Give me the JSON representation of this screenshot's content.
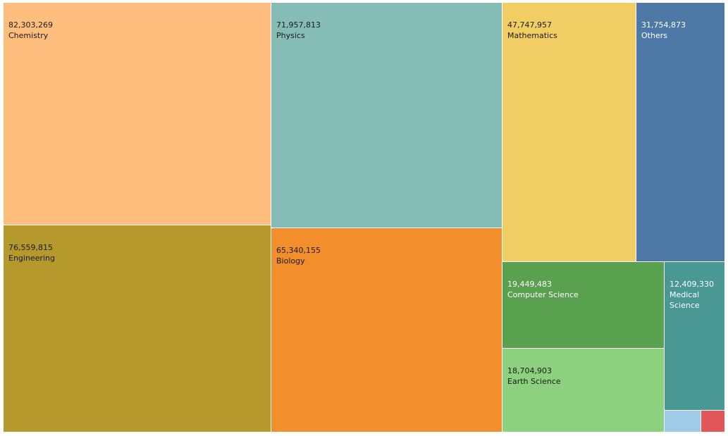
{
  "chart_data": {
    "type": "treemap",
    "items": [
      {
        "label": "Chemistry",
        "value_label": "82,303,269",
        "value": 82303269,
        "color": "#FFBE7D",
        "text_color": "#1a1a1a"
      },
      {
        "label": "Engineering",
        "value_label": "76,559,815",
        "value": 76559815,
        "color": "#B6992D",
        "text_color": "#1a1a1a"
      },
      {
        "label": "Physics",
        "value_label": "71,957,813",
        "value": 71957813,
        "color": "#86BCB6",
        "text_color": "#1a1a1a"
      },
      {
        "label": "Biology",
        "value_label": "65,340,155",
        "value": 65340155,
        "color": "#F28E2B",
        "text_color": "#1a1a1a"
      },
      {
        "label": "Mathematics",
        "value_label": "47,747,957",
        "value": 47747957,
        "color": "#F1CE63",
        "text_color": "#1a1a1a"
      },
      {
        "label": "Others",
        "value_label": "31,754,873",
        "value": 31754873,
        "color": "#4E79A7",
        "text_color": "#ffffff"
      },
      {
        "label": "Computer Science",
        "value_label": "19,449,483",
        "value": 19449483,
        "color": "#59A14F",
        "text_color": "#ffffff"
      },
      {
        "label": "Earth Science",
        "value_label": "18,704,903",
        "value": 18704903,
        "color": "#8CD17D",
        "text_color": "#1a1a1a"
      },
      {
        "label": "Medical Science",
        "value_label": "12,409,330",
        "value": 12409330,
        "color": "#499894",
        "text_color": "#ffffff",
        "wrap": true
      },
      {
        "label": "",
        "value_label": "",
        "color": "#A0CBE8",
        "text_color": "#1a1a1a"
      },
      {
        "label": "",
        "value_label": "",
        "color": "#E15759",
        "text_color": "#ffffff"
      }
    ]
  }
}
